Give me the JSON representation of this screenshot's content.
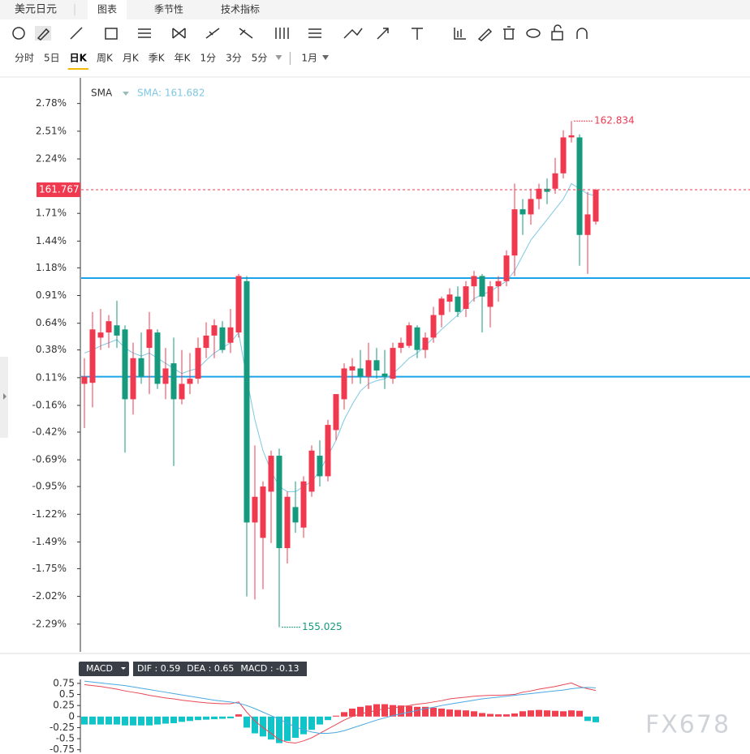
{
  "tabs": {
    "symbol": "美元日元",
    "items": [
      "图表",
      "季节性",
      "技术指标"
    ],
    "active_index": 0
  },
  "timeframes": {
    "items": [
      "分时",
      "5日",
      "日K",
      "周K",
      "月K",
      "季K",
      "年K",
      "1分",
      "3分",
      "5分"
    ],
    "active_index": 2,
    "period": "1月"
  },
  "watermark": "FX678",
  "chart_data": [
    {
      "type": "candlestick",
      "indicator": "SMA",
      "sma_label": "SMA: 161.682",
      "up_color": "#f0394f",
      "down_color": "#169a7e",
      "high_price": 162.834,
      "low_price": 155.025,
      "last_price": 161.767,
      "ylim": [
        -2.56,
        3.03
      ],
      "yticks": [
        {
          "value": 2.78,
          "label": "2.78%"
        },
        {
          "value": 2.51,
          "label": "2.51%"
        },
        {
          "value": 2.24,
          "label": "2.24%"
        },
        {
          "value": 1.71,
          "label": "1.71%"
        },
        {
          "value": 1.44,
          "label": "1.44%"
        },
        {
          "value": 1.18,
          "label": "1.18%"
        },
        {
          "value": 0.91,
          "label": "0.91%"
        },
        {
          "value": 0.64,
          "label": "0.64%"
        },
        {
          "value": 0.38,
          "label": "0.38%"
        },
        {
          "value": 0.11,
          "label": "0.11%"
        },
        {
          "value": -0.16,
          "label": "-0.16%"
        },
        {
          "value": -0.42,
          "label": "-0.42%"
        },
        {
          "value": -0.69,
          "label": "-0.69%"
        },
        {
          "value": -0.95,
          "label": "-0.95%"
        },
        {
          "value": -1.22,
          "label": "-1.22%"
        },
        {
          "value": -1.49,
          "label": "-1.49%"
        },
        {
          "value": -1.75,
          "label": "-1.75%"
        },
        {
          "value": -2.02,
          "label": "-2.02%"
        },
        {
          "value": -2.29,
          "label": "-2.29%"
        }
      ],
      "hlines": [
        1.08,
        0.12
      ],
      "hline_color": "#1aa3e8",
      "open": [
        0.05,
        0.06,
        0.5,
        0.55,
        0.62,
        0.58,
        -0.1,
        0.3,
        0.4,
        0.55,
        0.05,
        0.25,
        -0.1,
        0.05,
        0.1,
        0.4,
        0.52,
        0.6,
        0.45,
        0.55,
        1.05,
        -1.3,
        -1.45,
        -1.0,
        -0.65,
        -1.55,
        -1.15,
        -1.35,
        -1.0,
        -0.65,
        -0.85,
        -0.4,
        -0.1,
        0.18,
        0.2,
        0.12,
        0.28,
        0.15,
        0.1,
        0.4,
        0.42,
        0.6,
        0.38,
        0.5,
        0.72,
        0.85,
        0.9,
        0.78,
        1.0,
        1.1,
        0.8,
        1.0,
        1.05,
        1.3,
        1.75,
        1.7,
        1.85,
        1.95,
        1.95,
        2.1,
        2.45,
        2.45,
        1.5,
        1.63
      ],
      "high": [
        0.3,
        0.75,
        0.78,
        0.72,
        0.86,
        0.62,
        0.45,
        0.55,
        0.75,
        0.58,
        0.4,
        0.5,
        0.38,
        0.35,
        0.5,
        0.65,
        0.68,
        0.66,
        0.78,
        1.12,
        1.1,
        -0.55,
        -0.9,
        -0.6,
        -0.58,
        -1.0,
        -0.9,
        -0.85,
        -0.55,
        -0.5,
        -0.3,
        -0.05,
        0.25,
        0.3,
        0.38,
        0.45,
        0.4,
        0.38,
        0.45,
        0.5,
        0.65,
        0.62,
        0.55,
        0.8,
        0.9,
        0.98,
        1.0,
        1.05,
        1.15,
        1.12,
        1.05,
        1.1,
        1.35,
        2.0,
        1.85,
        1.95,
        2.0,
        2.05,
        2.25,
        2.52,
        2.61,
        2.48,
        1.92,
        1.95
      ],
      "low": [
        -0.38,
        -0.18,
        0.38,
        0.4,
        0.4,
        -0.62,
        -0.25,
        0.05,
        -0.05,
        0.0,
        -0.1,
        -0.75,
        -0.15,
        -0.05,
        0.05,
        0.3,
        0.3,
        0.35,
        0.35,
        0.5,
        -2.02,
        -2.05,
        -1.95,
        -1.5,
        -2.32,
        -1.7,
        -1.4,
        -1.45,
        -1.05,
        -0.95,
        -0.9,
        -0.5,
        -0.2,
        0.05,
        0.05,
        0.0,
        0.1,
        0.0,
        0.05,
        0.35,
        0.4,
        0.3,
        0.3,
        0.45,
        0.6,
        0.75,
        0.7,
        0.7,
        0.85,
        0.55,
        0.6,
        0.85,
        1.0,
        1.1,
        1.5,
        1.6,
        1.75,
        1.8,
        1.9,
        2.05,
        2.4,
        1.2,
        1.12,
        1.6
      ],
      "close": [
        0.12,
        0.58,
        0.55,
        0.66,
        0.52,
        -0.1,
        0.3,
        0.12,
        0.58,
        0.05,
        0.2,
        -0.1,
        0.05,
        0.1,
        0.4,
        0.52,
        0.62,
        0.38,
        0.6,
        1.1,
        -1.3,
        -1.05,
        -0.95,
        -0.65,
        -1.55,
        -1.05,
        -1.3,
        -0.9,
        -0.6,
        -0.85,
        -0.35,
        -0.05,
        0.2,
        0.22,
        0.12,
        0.28,
        0.18,
        0.12,
        0.4,
        0.45,
        0.62,
        0.38,
        0.5,
        0.72,
        0.88,
        0.92,
        0.75,
        1.0,
        1.1,
        0.9,
        1.0,
        1.05,
        1.3,
        1.75,
        1.7,
        1.85,
        1.95,
        1.92,
        2.1,
        2.45,
        2.47,
        1.5,
        1.7,
        1.94
      ],
      "series": [
        {
          "color": "#7ec8e3",
          "values": [
            0.35,
            0.38,
            0.42,
            0.45,
            0.48,
            0.4,
            0.35,
            0.32,
            0.35,
            0.3,
            0.25,
            0.2,
            0.15,
            0.18,
            0.2,
            0.28,
            0.35,
            0.4,
            0.45,
            0.55,
            0.1,
            -0.3,
            -0.6,
            -0.8,
            -0.95,
            -1.0,
            -1.0,
            -0.95,
            -0.9,
            -0.8,
            -0.65,
            -0.5,
            -0.3,
            -0.15,
            -0.02,
            0.05,
            0.08,
            0.1,
            0.15,
            0.22,
            0.3,
            0.35,
            0.42,
            0.5,
            0.58,
            0.65,
            0.72,
            0.8,
            0.88,
            0.92,
            0.95,
            1.0,
            1.05,
            1.15,
            1.3,
            1.45,
            1.55,
            1.65,
            1.75,
            1.85,
            2.0,
            1.95,
            1.9,
            1.88
          ]
        }
      ]
    },
    {
      "type": "macd",
      "indicator": "MACD",
      "legend": [
        "DIF : 0.59",
        "DEA : 0.65",
        "MACD : -0.13"
      ],
      "ylim": [
        -0.81,
        0.84
      ],
      "yticks": [
        0.75,
        0.5,
        0.25,
        0,
        -0.25,
        -0.5,
        -0.75
      ],
      "up_color": "#f04050",
      "down_color": "#10c4c8",
      "values": [
        -0.18,
        -0.18,
        -0.18,
        -0.18,
        -0.18,
        -0.2,
        -0.2,
        -0.2,
        -0.2,
        -0.18,
        -0.16,
        -0.15,
        -0.12,
        -0.1,
        -0.08,
        -0.07,
        -0.06,
        -0.05,
        -0.04,
        0.05,
        -0.25,
        -0.38,
        -0.45,
        -0.52,
        -0.6,
        -0.55,
        -0.48,
        -0.4,
        -0.3,
        -0.18,
        -0.08,
        0.02,
        0.1,
        0.18,
        0.22,
        0.25,
        0.28,
        0.28,
        0.26,
        0.25,
        0.24,
        0.22,
        0.22,
        0.2,
        0.18,
        0.16,
        0.15,
        0.14,
        0.12,
        0.08,
        0.06,
        0.05,
        0.05,
        0.07,
        0.12,
        0.14,
        0.15,
        0.14,
        0.13,
        0.12,
        0.14,
        0.13,
        -0.1,
        -0.13
      ],
      "series": [
        {
          "color": "#e84855",
          "values": [
            0.72,
            0.7,
            0.68,
            0.65,
            0.62,
            0.58,
            0.55,
            0.52,
            0.48,
            0.45,
            0.42,
            0.4,
            0.37,
            0.35,
            0.33,
            0.31,
            0.3,
            0.29,
            0.29,
            0.33,
            0.1,
            -0.1,
            -0.25,
            -0.38,
            -0.52,
            -0.58,
            -0.6,
            -0.55,
            -0.48,
            -0.38,
            -0.28,
            -0.18,
            -0.08,
            0.0,
            0.06,
            0.1,
            0.14,
            0.18,
            0.2,
            0.22,
            0.25,
            0.28,
            0.3,
            0.33,
            0.36,
            0.4,
            0.42,
            0.44,
            0.46,
            0.47,
            0.48,
            0.48,
            0.49,
            0.5,
            0.55,
            0.58,
            0.62,
            0.65,
            0.68,
            0.72,
            0.76,
            0.68,
            0.63,
            0.59
          ]
        },
        {
          "color": "#4aa8e0",
          "values": [
            0.8,
            0.78,
            0.76,
            0.74,
            0.72,
            0.7,
            0.67,
            0.64,
            0.61,
            0.58,
            0.55,
            0.52,
            0.49,
            0.46,
            0.43,
            0.4,
            0.37,
            0.35,
            0.33,
            0.3,
            0.25,
            0.18,
            0.1,
            0.02,
            -0.06,
            -0.15,
            -0.23,
            -0.3,
            -0.35,
            -0.38,
            -0.38,
            -0.36,
            -0.32,
            -0.26,
            -0.2,
            -0.14,
            -0.08,
            -0.03,
            0.02,
            0.06,
            0.1,
            0.14,
            0.18,
            0.21,
            0.25,
            0.28,
            0.31,
            0.34,
            0.37,
            0.4,
            0.42,
            0.44,
            0.46,
            0.48,
            0.5,
            0.52,
            0.54,
            0.56,
            0.58,
            0.6,
            0.63,
            0.65,
            0.66,
            0.65
          ]
        }
      ]
    }
  ]
}
